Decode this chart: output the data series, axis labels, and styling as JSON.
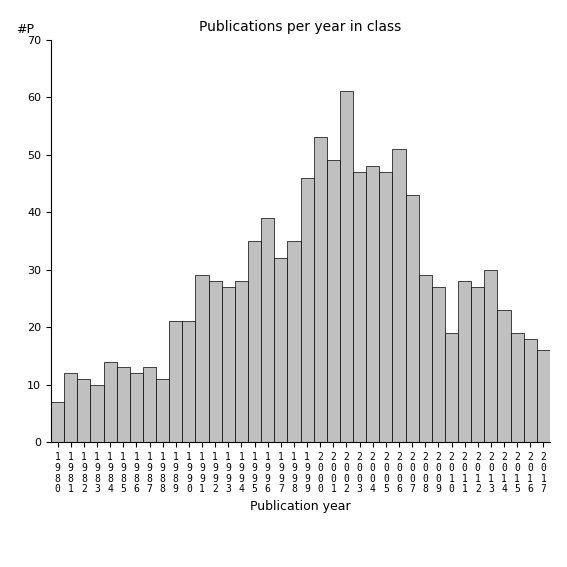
{
  "title": "Publications per year in class",
  "xlabel": "Publication year",
  "ylabel": "#P",
  "bar_color": "#c0c0c0",
  "bar_edge_color": "#000000",
  "years": [
    1980,
    1981,
    1982,
    1983,
    1984,
    1985,
    1986,
    1987,
    1988,
    1989,
    1990,
    1991,
    1992,
    1993,
    1994,
    1995,
    1996,
    1997,
    1998,
    1999,
    2000,
    2001,
    2002,
    2003,
    2004,
    2005,
    2006,
    2007,
    2008,
    2009,
    2010,
    2011,
    2012,
    2013,
    2014,
    2015,
    2016,
    2017
  ],
  "values": [
    7,
    12,
    11,
    10,
    14,
    13,
    12,
    13,
    11,
    21,
    21,
    29,
    28,
    27,
    28,
    35,
    39,
    32,
    35,
    46,
    53,
    49,
    61,
    47,
    48,
    47,
    51,
    43,
    29,
    27,
    19,
    28,
    27,
    30,
    23,
    19,
    18,
    16
  ],
  "ylim": [
    0,
    70
  ],
  "yticks": [
    0,
    10,
    20,
    30,
    40,
    50,
    60,
    70
  ],
  "figsize": [
    5.67,
    5.67
  ],
  "dpi": 100,
  "bg_color": "#ffffff",
  "tick_label_fontsize": 7,
  "axis_label_fontsize": 9,
  "title_fontsize": 10
}
